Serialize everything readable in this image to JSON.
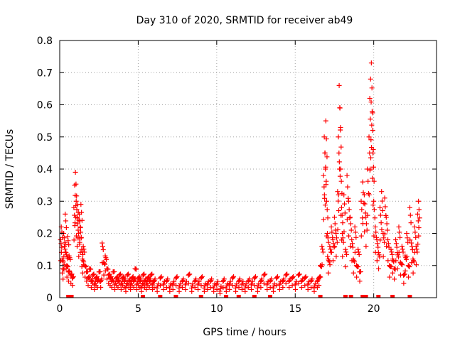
{
  "chart_data": {
    "type": "scatter",
    "title": "Day 310 of 2020, SRMTID for receiver ab49",
    "xlabel": "GPS time / hours",
    "ylabel": "SRMTID / TECUs",
    "xlim": [
      0,
      24
    ],
    "ylim": [
      0,
      0.8
    ],
    "xticks": [
      0,
      5,
      10,
      15,
      20
    ],
    "yticks": [
      0,
      0.1,
      0.2,
      0.3,
      0.4,
      0.5,
      0.6,
      0.7,
      0.8
    ],
    "xtick_labels": [
      "0",
      "5",
      "10",
      "15",
      "20"
    ],
    "ytick_labels": [
      "0",
      "0.1",
      "0.2",
      "0.3",
      "0.4",
      "0.5",
      "0.6",
      "0.7",
      "0.8"
    ],
    "grid": true,
    "marker": "+",
    "color": "#ff0000",
    "series": [
      {
        "name": "SRMTID",
        "points": [
          [
            0.05,
            0.18
          ],
          [
            0.1,
            0.22
          ],
          [
            0.15,
            0.12
          ],
          [
            0.2,
            0.09
          ],
          [
            0.25,
            0.2
          ],
          [
            0.3,
            0.16
          ],
          [
            0.35,
            0.26
          ],
          [
            0.4,
            0.14
          ],
          [
            0.45,
            0.1
          ],
          [
            0.5,
            0.19
          ],
          [
            0.55,
            0.08
          ],
          [
            0.6,
            0.13
          ],
          [
            0.7,
            0.07
          ],
          [
            0.8,
            0.06
          ],
          [
            0.9,
            0.28
          ],
          [
            0.95,
            0.35
          ],
          [
            1.0,
            0.39
          ],
          [
            1.05,
            0.3
          ],
          [
            1.1,
            0.25
          ],
          [
            1.15,
            0.29
          ],
          [
            1.2,
            0.2
          ],
          [
            1.25,
            0.26
          ],
          [
            1.3,
            0.22
          ],
          [
            1.35,
            0.29
          ],
          [
            1.4,
            0.15
          ],
          [
            1.45,
            0.12
          ],
          [
            1.5,
            0.16
          ],
          [
            1.6,
            0.1
          ],
          [
            1.7,
            0.08
          ],
          [
            1.8,
            0.06
          ],
          [
            1.9,
            0.09
          ],
          [
            2.0,
            0.05
          ],
          [
            2.1,
            0.07
          ],
          [
            2.2,
            0.04
          ],
          [
            2.3,
            0.06
          ],
          [
            2.4,
            0.05
          ],
          [
            2.5,
            0.08
          ],
          [
            2.6,
            0.05
          ],
          [
            2.7,
            0.17
          ],
          [
            2.8,
            0.11
          ],
          [
            2.9,
            0.13
          ],
          [
            3.0,
            0.09
          ],
          [
            3.1,
            0.07
          ],
          [
            3.2,
            0.06
          ],
          [
            3.3,
            0.05
          ],
          [
            3.4,
            0.08
          ],
          [
            3.5,
            0.04
          ],
          [
            3.6,
            0.06
          ],
          [
            3.7,
            0.05
          ],
          [
            3.8,
            0.07
          ],
          [
            3.9,
            0.04
          ],
          [
            4.0,
            0.06
          ],
          [
            4.1,
            0.05
          ],
          [
            4.2,
            0.03
          ],
          [
            4.3,
            0.07
          ],
          [
            4.4,
            0.05
          ],
          [
            4.5,
            0.04
          ],
          [
            4.6,
            0.06
          ],
          [
            4.7,
            0.05
          ],
          [
            4.8,
            0.09
          ],
          [
            4.9,
            0.04
          ],
          [
            5.0,
            0.06
          ],
          [
            5.1,
            0.05
          ],
          [
            5.2,
            0.03
          ],
          [
            5.3,
            0.07
          ],
          [
            5.4,
            0.05
          ],
          [
            5.5,
            0.04
          ],
          [
            5.6,
            0.06
          ],
          [
            5.7,
            0.05
          ],
          [
            5.8,
            0.07
          ],
          [
            5.9,
            0.04
          ],
          [
            6.0,
            0.05
          ],
          [
            6.2,
            0.03
          ],
          [
            6.4,
            0.06
          ],
          [
            6.6,
            0.04
          ],
          [
            6.8,
            0.05
          ],
          [
            7.0,
            0.03
          ],
          [
            7.2,
            0.04
          ],
          [
            7.4,
            0.06
          ],
          [
            7.6,
            0.03
          ],
          [
            7.8,
            0.05
          ],
          [
            8.0,
            0.04
          ],
          [
            8.2,
            0.07
          ],
          [
            8.4,
            0.03
          ],
          [
            8.6,
            0.05
          ],
          [
            8.8,
            0.04
          ],
          [
            9.0,
            0.06
          ],
          [
            9.2,
            0.03
          ],
          [
            9.4,
            0.04
          ],
          [
            9.6,
            0.05
          ],
          [
            9.8,
            0.03
          ],
          [
            10.0,
            0.04
          ],
          [
            10.2,
            0.02
          ],
          [
            10.4,
            0.05
          ],
          [
            10.6,
            0.03
          ],
          [
            10.8,
            0.04
          ],
          [
            11.0,
            0.06
          ],
          [
            11.2,
            0.03
          ],
          [
            11.4,
            0.05
          ],
          [
            11.6,
            0.04
          ],
          [
            11.8,
            0.03
          ],
          [
            12.0,
            0.05
          ],
          [
            12.2,
            0.04
          ],
          [
            12.4,
            0.06
          ],
          [
            12.6,
            0.03
          ],
          [
            12.8,
            0.05
          ],
          [
            13.0,
            0.07
          ],
          [
            13.2,
            0.04
          ],
          [
            13.4,
            0.05
          ],
          [
            13.6,
            0.03
          ],
          [
            13.8,
            0.06
          ],
          [
            14.0,
            0.04
          ],
          [
            14.2,
            0.05
          ],
          [
            14.4,
            0.07
          ],
          [
            14.6,
            0.05
          ],
          [
            14.8,
            0.06
          ],
          [
            15.0,
            0.04
          ],
          [
            15.2,
            0.07
          ],
          [
            15.4,
            0.05
          ],
          [
            15.6,
            0.06
          ],
          [
            15.8,
            0.04
          ],
          [
            16.0,
            0.05
          ],
          [
            16.2,
            0.03
          ],
          [
            16.4,
            0.05
          ],
          [
            16.5,
            0.06
          ],
          [
            16.6,
            0.1
          ],
          [
            16.7,
            0.16
          ],
          [
            16.8,
            0.38
          ],
          [
            16.85,
            0.5
          ],
          [
            16.9,
            0.45
          ],
          [
            16.95,
            0.55
          ],
          [
            17.0,
            0.3
          ],
          [
            17.05,
            0.2
          ],
          [
            17.1,
            0.12
          ],
          [
            17.2,
            0.16
          ],
          [
            17.3,
            0.22
          ],
          [
            17.4,
            0.18
          ],
          [
            17.5,
            0.25
          ],
          [
            17.6,
            0.2
          ],
          [
            17.7,
            0.33
          ],
          [
            17.75,
            0.5
          ],
          [
            17.8,
            0.66
          ],
          [
            17.85,
            0.59
          ],
          [
            17.9,
            0.4
          ],
          [
            17.95,
            0.28
          ],
          [
            18.0,
            0.2
          ],
          [
            18.1,
            0.32
          ],
          [
            18.2,
            0.15
          ],
          [
            18.3,
            0.38
          ],
          [
            18.4,
            0.3
          ],
          [
            18.5,
            0.25
          ],
          [
            18.6,
            0.18
          ],
          [
            18.7,
            0.12
          ],
          [
            18.8,
            0.22
          ],
          [
            18.9,
            0.1
          ],
          [
            19.0,
            0.15
          ],
          [
            19.1,
            0.08
          ],
          [
            19.2,
            0.3
          ],
          [
            19.3,
            0.36
          ],
          [
            19.4,
            0.32
          ],
          [
            19.5,
            0.25
          ],
          [
            19.6,
            0.4
          ],
          [
            19.7,
            0.5
          ],
          [
            19.75,
            0.62
          ],
          [
            19.8,
            0.68
          ],
          [
            19.85,
            0.73
          ],
          [
            19.9,
            0.58
          ],
          [
            19.95,
            0.45
          ],
          [
            20.0,
            0.3
          ],
          [
            20.1,
            0.22
          ],
          [
            20.2,
            0.18
          ],
          [
            20.3,
            0.14
          ],
          [
            20.4,
            0.28
          ],
          [
            20.5,
            0.33
          ],
          [
            20.6,
            0.2
          ],
          [
            20.7,
            0.31
          ],
          [
            20.8,
            0.25
          ],
          [
            20.9,
            0.18
          ],
          [
            21.0,
            0.1
          ],
          [
            21.1,
            0.15
          ],
          [
            21.2,
            0.12
          ],
          [
            21.3,
            0.09
          ],
          [
            21.4,
            0.18
          ],
          [
            21.5,
            0.14
          ],
          [
            21.6,
            0.22
          ],
          [
            21.7,
            0.11
          ],
          [
            21.8,
            0.16
          ],
          [
            21.9,
            0.07
          ],
          [
            22.0,
            0.13
          ],
          [
            22.1,
            0.2
          ],
          [
            22.2,
            0.1
          ],
          [
            22.3,
            0.28
          ],
          [
            22.4,
            0.17
          ],
          [
            22.5,
            0.12
          ],
          [
            22.6,
            0.22
          ],
          [
            22.7,
            0.16
          ],
          [
            22.8,
            0.26
          ],
          [
            22.85,
            0.3
          ]
        ]
      }
    ],
    "zero_markers_x": [
      0.55,
      0.75,
      5.3,
      6.4,
      7.4,
      9.0,
      10.6,
      11.4,
      12.4,
      13.4,
      16.6,
      18.2,
      18.55,
      19.3,
      19.5,
      20.3,
      21.2,
      22.3
    ]
  }
}
